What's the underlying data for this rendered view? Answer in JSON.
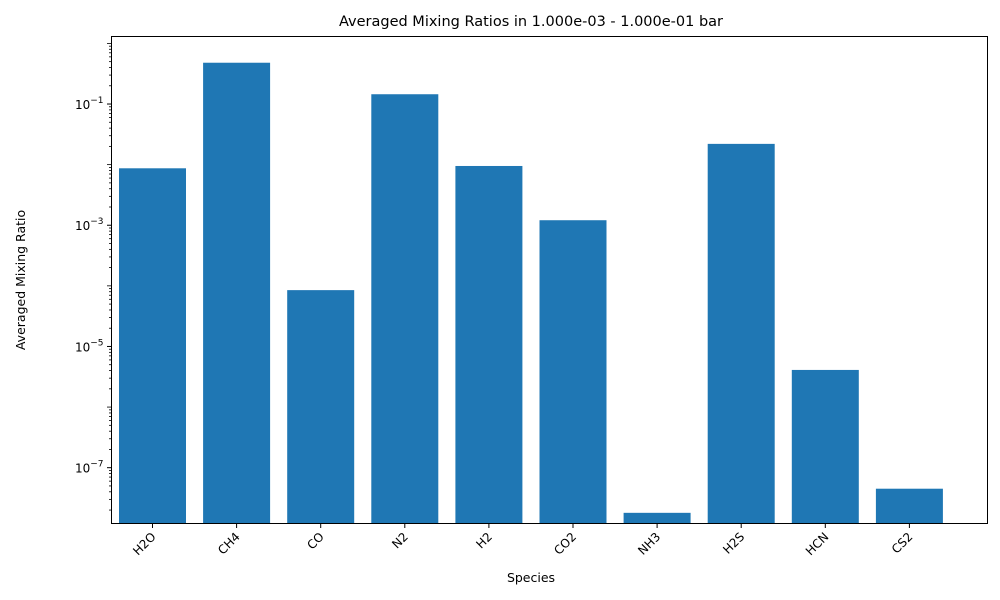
{
  "chart_data": {
    "type": "bar",
    "title": "Averaged Mixing Ratios in 1.000e-03 - 1.000e-01 bar",
    "xlabel": "Species",
    "ylabel": "Averaged Mixing Ratio",
    "yscale": "log",
    "ylim": [
      1.2e-08,
      1.3
    ],
    "yticks": [
      {
        "value": 1e-07,
        "base": "10",
        "exp": "−7"
      },
      {
        "value": 1e-05,
        "base": "10",
        "exp": "−5"
      },
      {
        "value": 0.001,
        "base": "10",
        "exp": "−3"
      },
      {
        "value": 0.1,
        "base": "10",
        "exp": "−1"
      }
    ],
    "categories": [
      "H2O",
      "CH4",
      "CO",
      "N2",
      "H2",
      "CO2",
      "NH3",
      "H2S",
      "HCN",
      "CS2"
    ],
    "values": [
      0.0087,
      0.48,
      8.5e-05,
      0.145,
      0.0095,
      0.00121,
      1.8e-08,
      0.022,
      4.1e-06,
      4.5e-08
    ],
    "bar_color": "#1f77b4",
    "grid": false,
    "legend": "none"
  }
}
